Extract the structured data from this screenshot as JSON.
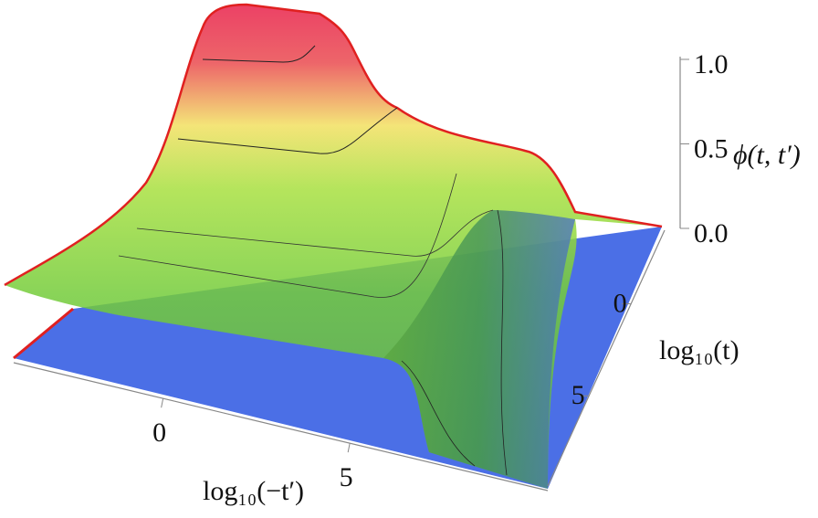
{
  "chart_data": {
    "type": "surface3d",
    "xlabel": "log₁₀(−t′)",
    "ylabel": "log₁₀(t)",
    "zlabel": "ϕ(t, t′)",
    "xlim": [
      -4,
      10.3
    ],
    "xticks": [
      0,
      5
    ],
    "ylim": [
      -4,
      9.9
    ],
    "yticks": [
      0,
      5
    ],
    "zlim": [
      0,
      1
    ],
    "zticks": [
      {
        "value": 0,
        "label": "0.0"
      },
      0.5,
      {
        "value": 1,
        "label": "1.0"
      }
    ]
  }
}
